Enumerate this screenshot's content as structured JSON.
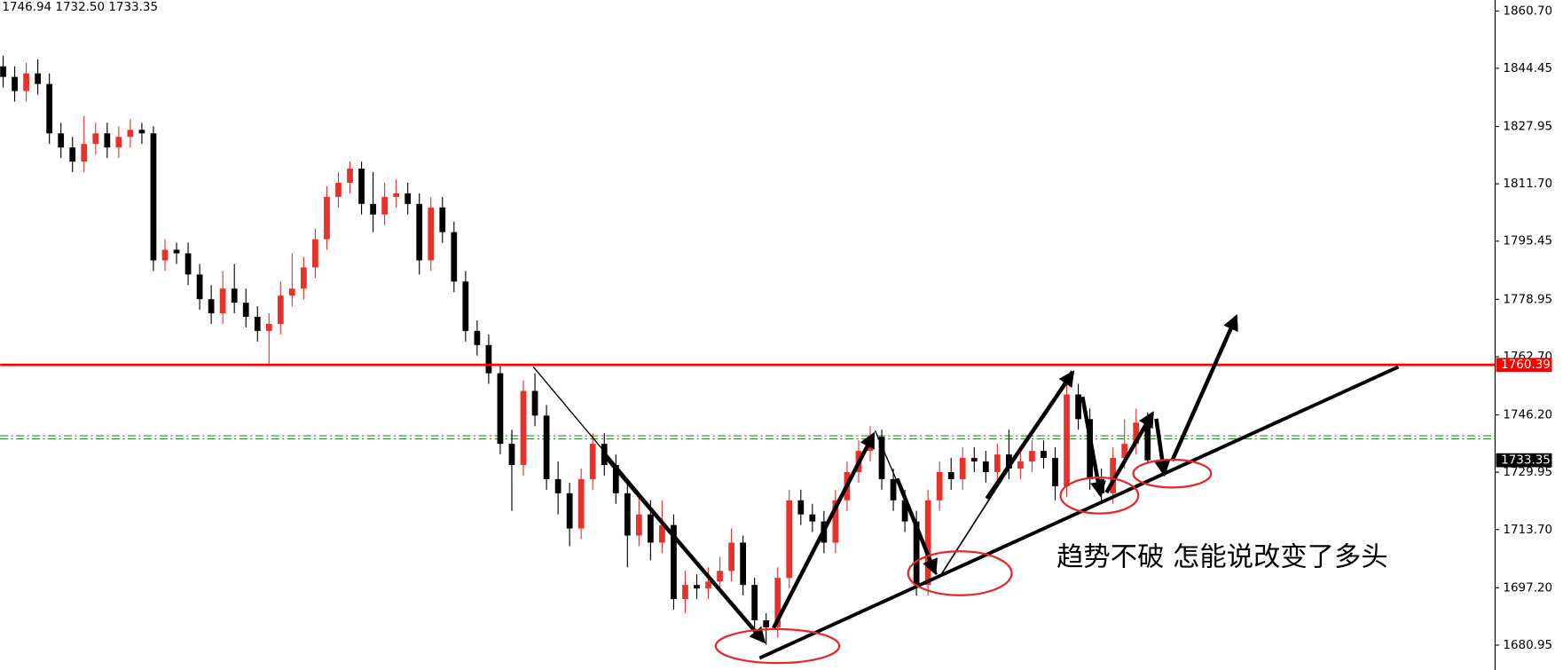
{
  "chart_data": {
    "type": "candlestick",
    "header": "1746.94 1732.50 1733.35",
    "annotation": "趋势不破  怎能说改变了多头",
    "up_color": "#e8312a",
    "down_color": "#000000",
    "open": [
      1845,
      1842,
      1838,
      1843,
      1840,
      1826,
      1822,
      1818,
      1823,
      1826,
      1822,
      1825,
      1827,
      1826,
      1790,
      1793,
      1792,
      1786,
      1779,
      1775,
      1782,
      1778,
      1774,
      1770,
      1772,
      1780,
      1782,
      1788,
      1796,
      1808,
      1812,
      1816,
      1806,
      1803,
      1808,
      1809,
      1806,
      1790,
      1805,
      1798,
      1784,
      1770,
      1766,
      1758,
      1738,
      1732,
      1753,
      1746,
      1728,
      1724,
      1714,
      1728,
      1738,
      1732,
      1724,
      1712,
      1718,
      1710,
      1715,
      1694,
      1698,
      1697,
      1699,
      1702,
      1710,
      1698,
      1688,
      1686,
      1700,
      1722,
      1718,
      1716,
      1710,
      1722,
      1730,
      1736,
      1740,
      1728,
      1722,
      1716,
      1698,
      1722,
      1730,
      1728,
      1734,
      1733,
      1730,
      1735,
      1731,
      1733,
      1736,
      1734,
      1726,
      1752,
      1745,
      1728,
      1724,
      1734,
      1738,
      1744
    ],
    "high": [
      1848,
      1845,
      1846,
      1847,
      1843,
      1829,
      1825,
      1831,
      1829,
      1829,
      1828,
      1830,
      1829,
      1828,
      1796,
      1795,
      1795,
      1789,
      1783,
      1787,
      1789,
      1782,
      1777,
      1775,
      1784,
      1792,
      1791,
      1799,
      1811,
      1815,
      1818,
      1818,
      1815,
      1812,
      1813,
      1812,
      1809,
      1808,
      1808,
      1801,
      1787,
      1773,
      1769,
      1760,
      1742,
      1756,
      1758,
      1749,
      1733,
      1727,
      1731,
      1741,
      1741,
      1735,
      1727,
      1724,
      1722,
      1722,
      1718,
      1702,
      1701,
      1703,
      1706,
      1714,
      1712,
      1700,
      1690,
      1703,
      1725,
      1725,
      1721,
      1719,
      1725,
      1733,
      1739,
      1743,
      1742,
      1731,
      1725,
      1719,
      1725,
      1733,
      1734,
      1737,
      1737,
      1736,
      1738,
      1742,
      1736,
      1739,
      1739,
      1737,
      1756,
      1755,
      1748,
      1731,
      1737,
      1745,
      1748,
      1746.94
    ],
    "low": [
      1839,
      1835,
      1835,
      1837,
      1823,
      1819,
      1815,
      1815,
      1820,
      1819,
      1819,
      1822,
      1823,
      1787,
      1787,
      1789,
      1783,
      1776,
      1772,
      1772,
      1775,
      1771,
      1767,
      1760,
      1769,
      1777,
      1779,
      1785,
      1793,
      1805,
      1809,
      1803,
      1798,
      1800,
      1805,
      1803,
      1786,
      1787,
      1795,
      1781,
      1767,
      1763,
      1755,
      1735,
      1719,
      1729,
      1743,
      1725,
      1718,
      1709,
      1711,
      1725,
      1729,
      1721,
      1703,
      1709,
      1705,
      1707,
      1691,
      1690,
      1694,
      1694,
      1696,
      1699,
      1695,
      1684,
      1681,
      1683,
      1697,
      1715,
      1713,
      1707,
      1707,
      1719,
      1727,
      1733,
      1725,
      1719,
      1713,
      1695,
      1695,
      1719,
      1725,
      1725,
      1730,
      1727,
      1727,
      1728,
      1728,
      1730,
      1731,
      1722,
      1723,
      1742,
      1725,
      1721,
      1721,
      1731,
      1735,
      1732.5
    ],
    "close": [
      1842,
      1838,
      1843,
      1840,
      1826,
      1822,
      1818,
      1823,
      1826,
      1822,
      1825,
      1827,
      1826,
      1790,
      1793,
      1792,
      1786,
      1779,
      1775,
      1782,
      1778,
      1774,
      1770,
      1772,
      1780,
      1782,
      1788,
      1796,
      1808,
      1812,
      1816,
      1806,
      1803,
      1808,
      1809,
      1806,
      1790,
      1805,
      1798,
      1784,
      1770,
      1766,
      1758,
      1738,
      1732,
      1753,
      1746,
      1728,
      1724,
      1714,
      1728,
      1738,
      1732,
      1724,
      1712,
      1718,
      1710,
      1715,
      1694,
      1698,
      1697,
      1699,
      1702,
      1710,
      1698,
      1688,
      1686,
      1700,
      1722,
      1718,
      1716,
      1710,
      1722,
      1730,
      1736,
      1740,
      1728,
      1722,
      1716,
      1698,
      1722,
      1730,
      1728,
      1734,
      1733,
      1730,
      1735,
      1731,
      1733,
      1736,
      1734,
      1726,
      1752,
      1745,
      1728,
      1724,
      1734,
      1738,
      1744,
      1733.35
    ],
    "ylim": [
      1673.9,
      1863.8
    ],
    "yticks": [
      {
        "value": 1860.7,
        "label": "1860.70"
      },
      {
        "value": 1844.45,
        "label": "1844.45"
      },
      {
        "value": 1827.95,
        "label": "1827.95"
      },
      {
        "value": 1811.7,
        "label": "1811.70"
      },
      {
        "value": 1795.45,
        "label": "1795.45"
      },
      {
        "value": 1778.95,
        "label": "1778.95"
      },
      {
        "value": 1762.7,
        "label": "1762.70"
      },
      {
        "value": 1746.2,
        "label": "1746.20"
      },
      {
        "value": 1729.95,
        "label": "1729.95"
      },
      {
        "value": 1713.7,
        "label": "1713.70"
      },
      {
        "value": 1697.2,
        "label": "1697.20"
      },
      {
        "value": 1680.95,
        "label": "1680.95"
      }
    ],
    "resistance": {
      "value": 1760.39,
      "color": "#ff0000"
    },
    "current_price": 1733.35,
    "green_levels": [
      1740.3,
      1739.4
    ],
    "green_color": "#2e8b2e"
  }
}
